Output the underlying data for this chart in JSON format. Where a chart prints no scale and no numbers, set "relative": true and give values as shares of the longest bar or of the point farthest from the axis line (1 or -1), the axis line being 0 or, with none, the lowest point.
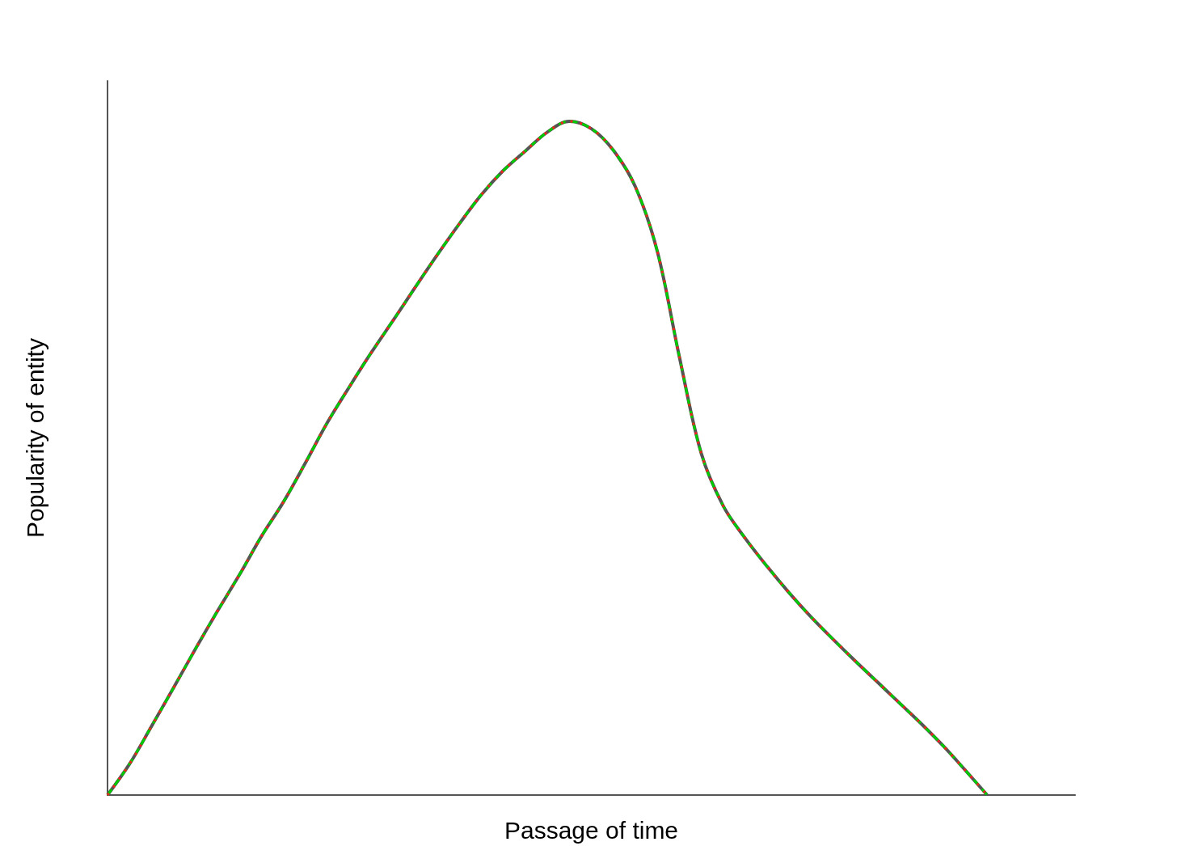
{
  "chart_data": {
    "type": "line",
    "relative": true,
    "xlabel": "Passage of time",
    "ylabel": "Popularity of entity",
    "categories": [
      null,
      null,
      null,
      null,
      null,
      null,
      null,
      null,
      null,
      null,
      null,
      null,
      null,
      null,
      null,
      null,
      null,
      null,
      null,
      null,
      null,
      null,
      null,
      null,
      null,
      null,
      null,
      null,
      null,
      null,
      null,
      null,
      null,
      null,
      null,
      null,
      null,
      null,
      null,
      null,
      null,
      null,
      null,
      null,
      null
    ],
    "series": [
      {
        "color": "#555555",
        "line_style": "solid",
        "values": [
          0,
          0.046,
          0.102,
          0.159,
          0.217,
          0.273,
          0.327,
          0.384,
          0.435,
          0.493,
          0.553,
          0.606,
          0.657,
          0.705,
          0.754,
          0.802,
          0.848,
          0.891,
          0.927,
          0.956,
          0.984,
          1,
          0.989,
          0.957,
          0.903,
          0.807,
          0.651,
          0.507,
          0.429,
          0.381,
          0.339,
          0.3,
          0.264,
          0.231,
          0.199,
          0.168,
          0.137,
          0.106,
          0.073,
          0.037,
          0,
          null,
          null,
          null,
          null
        ]
      },
      {
        "color": "#00cc00",
        "line_style": "dashed",
        "values": [
          0,
          0.046,
          0.102,
          0.159,
          0.217,
          0.273,
          0.327,
          0.384,
          0.435,
          0.493,
          0.553,
          0.606,
          0.657,
          0.705,
          0.754,
          0.802,
          0.848,
          0.891,
          0.927,
          0.956,
          0.984,
          1,
          0.989,
          0.957,
          0.903,
          0.807,
          0.651,
          0.507,
          0.429,
          0.381,
          0.339,
          0.3,
          0.264,
          0.231,
          0.199,
          0.168,
          0.137,
          0.106,
          0.073,
          0.037,
          0,
          null,
          null,
          null,
          null
        ]
      },
      {
        "color": "#ee2222",
        "line_style": "dotted",
        "values": [
          0,
          0.046,
          0.102,
          0.159,
          0.217,
          0.273,
          0.327,
          0.384,
          0.435,
          0.493,
          0.553,
          0.606,
          0.657,
          0.705,
          0.754,
          0.802,
          0.848,
          0.891,
          0.927,
          0.956,
          0.984,
          1,
          0.989,
          0.957,
          0.903,
          0.807,
          0.651,
          0.507,
          0.429,
          0.381,
          0.339,
          0.3,
          0.264,
          0.231,
          0.199,
          0.168,
          0.137,
          0.106,
          0.073,
          0.037,
          0,
          null,
          null,
          null,
          null
        ]
      }
    ],
    "grid": false,
    "marker": "none"
  }
}
